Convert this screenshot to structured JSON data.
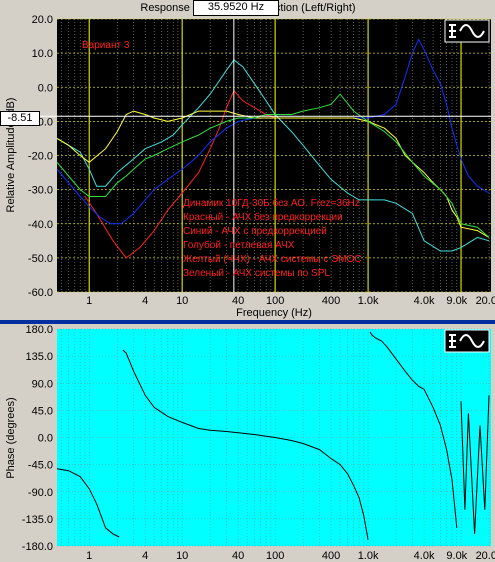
{
  "title": "Response Magnitude Correction (Left/Right)",
  "freq_readout": "35.9520 Hz",
  "level_readout": "-8.51",
  "colors": {
    "panel_bg": "#d4d0c8",
    "mag_bg": "#000000",
    "phase_bg": "#00ffff",
    "grid_yellow": "#d8d800",
    "grid_gray": "#9a9a9a",
    "red": "#ff2020",
    "blue": "#1030ff",
    "cyan": "#40e0e0",
    "yellow": "#ffff40",
    "green": "#30e040",
    "separator": "#0030a0"
  },
  "icon_name": "sine-wave-logo-icon",
  "chart_data": [
    {
      "type": "line",
      "name": "magnitude",
      "xlabel": "Frequency (Hz)",
      "ylabel": "Relative Amplitude (dB)",
      "xscale": "log",
      "xlim": [
        0.45,
        21000
      ],
      "ylim": [
        -60,
        20
      ],
      "yticks": [
        20.0,
        10.0,
        0.0,
        -10.0,
        -20.0,
        -30.0,
        -40.0,
        -50.0,
        -60.0
      ],
      "ytick_labels": [
        "20.0",
        "10.0",
        "0.0",
        "-10.0",
        "-20.0",
        "-30.0",
        "-40.0",
        "-50.0",
        "-60.0"
      ],
      "xticks": [
        1,
        4,
        10,
        40,
        100,
        400,
        1000,
        4000,
        9000,
        20000
      ],
      "xtick_labels": [
        "1",
        "4",
        "10",
        "40",
        "100",
        "400",
        "1.0k",
        "4.0k",
        "9.0k",
        "20.0k"
      ],
      "subtitle": "Вариант 3",
      "annotations": [
        "Динамик 10ГД-30Б без АО. Frez=36Hz",
        "Красный - АЧХ без предкоррекции",
        "Синий - АЧХ с предкоррекцией",
        "Голубой - петлевая АЧХ",
        "Желтый (ЧЧХ) - АЧХ системы с ЭМОС",
        "Зеленый - АЧХ системы по SPL"
      ],
      "series": [
        {
          "color": "red",
          "x": [
            0.9,
            1.2,
            1.8,
            2.5,
            3.5,
            5,
            7,
            10,
            15,
            20,
            25,
            30,
            36,
            45,
            60,
            80,
            100
          ],
          "y": [
            -32,
            -37,
            -45,
            -50,
            -47,
            -42,
            -36,
            -31,
            -25,
            -18,
            -12,
            -6,
            -1,
            -4,
            -6,
            -8,
            -9
          ]
        },
        {
          "color": "blue",
          "x": [
            0.45,
            0.6,
            0.8,
            1,
            1.3,
            1.7,
            2.2,
            3,
            4,
            5,
            7,
            10,
            15,
            20,
            30,
            40,
            60,
            80,
            120,
            200,
            300,
            400,
            500,
            700,
            1000,
            1500,
            2000,
            2500,
            3000,
            3500,
            4000,
            5000,
            6000,
            7000,
            8000,
            9000,
            10000,
            12000,
            15000,
            20000
          ],
          "y": [
            -24,
            -28,
            -32,
            -35,
            -38,
            -40,
            -40,
            -37,
            -33,
            -30,
            -27,
            -24,
            -20,
            -16,
            -12,
            -10,
            -9,
            -9,
            -9,
            -9,
            -9,
            -9,
            -9,
            -9,
            -9,
            -8,
            -5,
            3,
            10,
            14,
            11,
            5,
            1,
            -5,
            -12,
            -17,
            -21,
            -26,
            -29,
            -31
          ]
        },
        {
          "color": "cyan",
          "x": [
            0.45,
            0.6,
            0.8,
            1,
            1.2,
            1.5,
            2,
            3,
            4,
            6,
            8,
            10,
            15,
            20,
            30,
            36,
            45,
            60,
            80,
            100,
            150,
            200,
            300,
            400,
            600,
            800,
            1000,
            1500,
            2000,
            3000,
            4000,
            6000,
            8000,
            10000,
            15000,
            20000
          ],
          "y": [
            -15,
            -17,
            -19,
            -24,
            -29,
            -29,
            -25,
            -21,
            -18,
            -16,
            -14,
            -11,
            -6,
            -2,
            5,
            8,
            6,
            1,
            -4,
            -8,
            -13,
            -17,
            -23,
            -27,
            -31,
            -33,
            -33,
            -33,
            -34,
            -37,
            -45,
            -48,
            -48,
            -47,
            -44,
            -45
          ]
        },
        {
          "color": "yellow",
          "x": [
            0.45,
            0.6,
            0.8,
            1,
            1.5,
            2,
            2.5,
            3,
            4,
            5,
            7,
            10,
            15,
            20,
            30,
            40,
            60,
            80,
            100,
            150,
            200,
            300,
            400,
            500,
            700,
            1000,
            1500,
            2000,
            2500,
            3000,
            4000,
            5000,
            6000,
            7000,
            8000,
            9000,
            10000,
            15000,
            20000
          ],
          "y": [
            -15,
            -17,
            -20,
            -22,
            -18,
            -13,
            -8,
            -7,
            -8,
            -9,
            -10,
            -9,
            -7,
            -7,
            -7,
            -8,
            -9,
            -9,
            -9,
            -9,
            -9,
            -9,
            -9,
            -9,
            -9,
            -10,
            -12,
            -15,
            -20,
            -22,
            -25,
            -28,
            -30,
            -32,
            -36,
            -38,
            -41,
            -42,
            -44
          ]
        },
        {
          "color": "green",
          "x": [
            0.45,
            0.6,
            0.8,
            1,
            1.2,
            1.5,
            2,
            2.5,
            3,
            4,
            5,
            7,
            10,
            15,
            20,
            30,
            40,
            60,
            80,
            100,
            150,
            200,
            300,
            400,
            500,
            700,
            1000,
            1500,
            2000,
            3000,
            4000,
            6000,
            8000,
            10000,
            15000,
            20000
          ],
          "y": [
            -22,
            -26,
            -30,
            -32,
            -32,
            -32,
            -28,
            -26,
            -24,
            -21,
            -20,
            -18,
            -16,
            -14,
            -12,
            -10,
            -9,
            -9,
            -8,
            -8,
            -8,
            -7,
            -6,
            -5,
            -2,
            -7,
            -10,
            -13,
            -16,
            -22,
            -26,
            -30,
            -34,
            -40,
            -41,
            -44
          ]
        }
      ]
    },
    {
      "type": "line",
      "name": "phase",
      "xlabel": "Frequency (Hz)",
      "ylabel": "Phase (degrees)",
      "xscale": "log",
      "xlim": [
        0.45,
        21000
      ],
      "ylim": [
        -180,
        180
      ],
      "yticks": [
        180,
        135,
        90,
        45,
        0,
        -45,
        -90,
        -135,
        -180
      ],
      "ytick_labels": [
        "180.0",
        "135.0",
        "90.0",
        "45.0",
        "0.0",
        "-45.0",
        "-90.0",
        "-135.0",
        "-180.0"
      ],
      "xticks": [
        1,
        4,
        10,
        40,
        100,
        400,
        1000,
        4000,
        9000,
        20000
      ],
      "xtick_labels": [
        "1",
        "4",
        "10",
        "40",
        "100",
        "400",
        "1.0k",
        "4.0k",
        "9.0k",
        "20.0k"
      ],
      "series": [
        {
          "color": "black",
          "x": [
            0.45,
            0.6,
            0.8,
            1,
            1.2,
            1.5,
            1.8,
            2.1,
            2.3,
            2.5,
            3,
            4,
            5,
            7,
            10,
            15,
            20,
            30,
            40,
            60,
            80,
            100,
            150,
            200,
            300,
            400,
            500,
            600,
            700,
            800,
            900,
            1000,
            1050,
            1100,
            1200,
            1400,
            1600,
            2000,
            2500,
            3000,
            3500,
            4000,
            5000,
            6000,
            7000,
            8000,
            9000,
            10000,
            11000,
            12000,
            14000,
            16000,
            18000,
            20000
          ],
          "y": [
            -52,
            -55,
            -65,
            -85,
            -110,
            -150,
            -160,
            -165,
            145,
            140,
            110,
            70,
            50,
            35,
            25,
            15,
            12,
            10,
            8,
            5,
            2,
            0,
            -5,
            -10,
            -20,
            -35,
            -45,
            -60,
            -80,
            -100,
            -130,
            -170,
            175,
            170,
            165,
            160,
            150,
            130,
            110,
            95,
            85,
            80,
            50,
            20,
            -20,
            -70,
            -150,
            60,
            -120,
            40,
            -160,
            20,
            -120,
            70
          ]
        }
      ]
    }
  ]
}
